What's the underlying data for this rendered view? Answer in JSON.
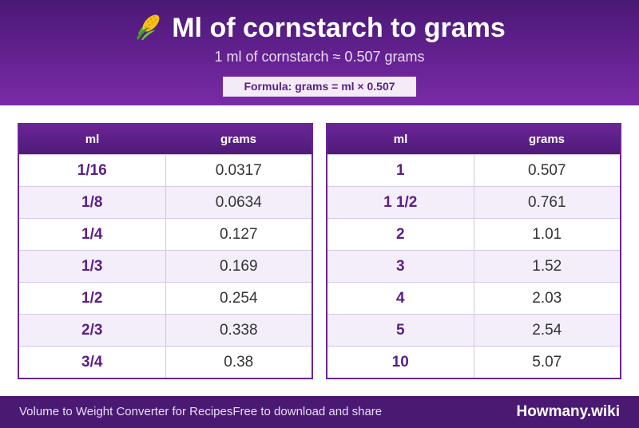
{
  "header": {
    "icon": "corn-icon",
    "title": "Ml of cornstarch to grams",
    "subtitle": "1 ml of cornstarch ≈ 0.507 grams",
    "formula": "Formula: grams = ml × 0.507"
  },
  "colors": {
    "header_dark": "#4a1875",
    "header_light": "#7a2aa8",
    "accent_text": "#5a1f86",
    "row_alt": "#f4eefa"
  },
  "tables": [
    {
      "headers": [
        "ml",
        "grams"
      ],
      "rows": [
        {
          "ml": "1/16",
          "grams": "0.0317"
        },
        {
          "ml": "1/8",
          "grams": "0.0634"
        },
        {
          "ml": "1/4",
          "grams": "0.127"
        },
        {
          "ml": "1/3",
          "grams": "0.169"
        },
        {
          "ml": "1/2",
          "grams": "0.254"
        },
        {
          "ml": "2/3",
          "grams": "0.338"
        },
        {
          "ml": "3/4",
          "grams": "0.38"
        }
      ]
    },
    {
      "headers": [
        "ml",
        "grams"
      ],
      "rows": [
        {
          "ml": "1",
          "grams": "0.507"
        },
        {
          "ml": "1 1/2",
          "grams": "0.761"
        },
        {
          "ml": "2",
          "grams": "1.01"
        },
        {
          "ml": "3",
          "grams": "1.52"
        },
        {
          "ml": "4",
          "grams": "2.03"
        },
        {
          "ml": "5",
          "grams": "2.54"
        },
        {
          "ml": "10",
          "grams": "5.07"
        }
      ]
    }
  ],
  "footer": {
    "description": "Volume to Weight Converter for Recipes",
    "tagline": "Free to download and share",
    "brand": "Howmany.wiki"
  }
}
